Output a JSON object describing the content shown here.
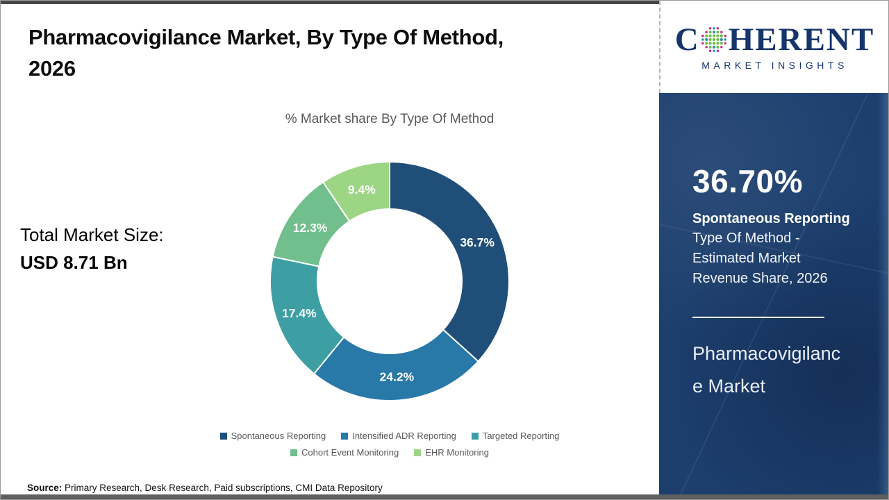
{
  "header": {
    "title_lines": [
      "Pharmacovigilance Market, By Type Of Method,",
      "2026"
    ]
  },
  "logo": {
    "prefix": "C",
    "suffix": "HERENT",
    "subtitle": "MARKET INSIGHTS",
    "navy": "#16356C",
    "dot_colors": [
      "#2E8FA3",
      "#6CBE45",
      "#C2248C"
    ]
  },
  "total_market": {
    "label": "Total Market Size:",
    "value": "USD 8.71 Bn"
  },
  "chart_data": {
    "type": "pie",
    "donut": true,
    "title": "% Market share By Type Of Method",
    "categories": [
      "Spontaneous Reporting",
      "Intensified ADR Reporting",
      "Targeted Reporting",
      "Cohort Event Monitoring",
      "EHR Monitoring"
    ],
    "values": [
      36.7,
      24.2,
      17.4,
      12.3,
      9.4
    ],
    "colors": [
      "#1F4E79",
      "#2878A8",
      "#3D9FA3",
      "#71BF8C",
      "#9CD584"
    ],
    "start_angle_deg": 0,
    "direction": "clockwise",
    "label_format": "percent_one_decimal",
    "legend_position": "bottom"
  },
  "sidebar": {
    "panel_color": "#1C3F6E",
    "highlight_value": "36.70%",
    "highlight_bold": "Spontaneous Reporting",
    "highlight_lines": [
      "Type Of Method -",
      "Estimated Market",
      "Revenue Share, 2026"
    ],
    "market_name_lines": [
      "Pharmacovigilanc",
      "e Market"
    ]
  },
  "footer": {
    "source_label": "Source:",
    "source_text": "Primary Research, Desk Research, Paid subscriptions, CMI Data Repository"
  }
}
